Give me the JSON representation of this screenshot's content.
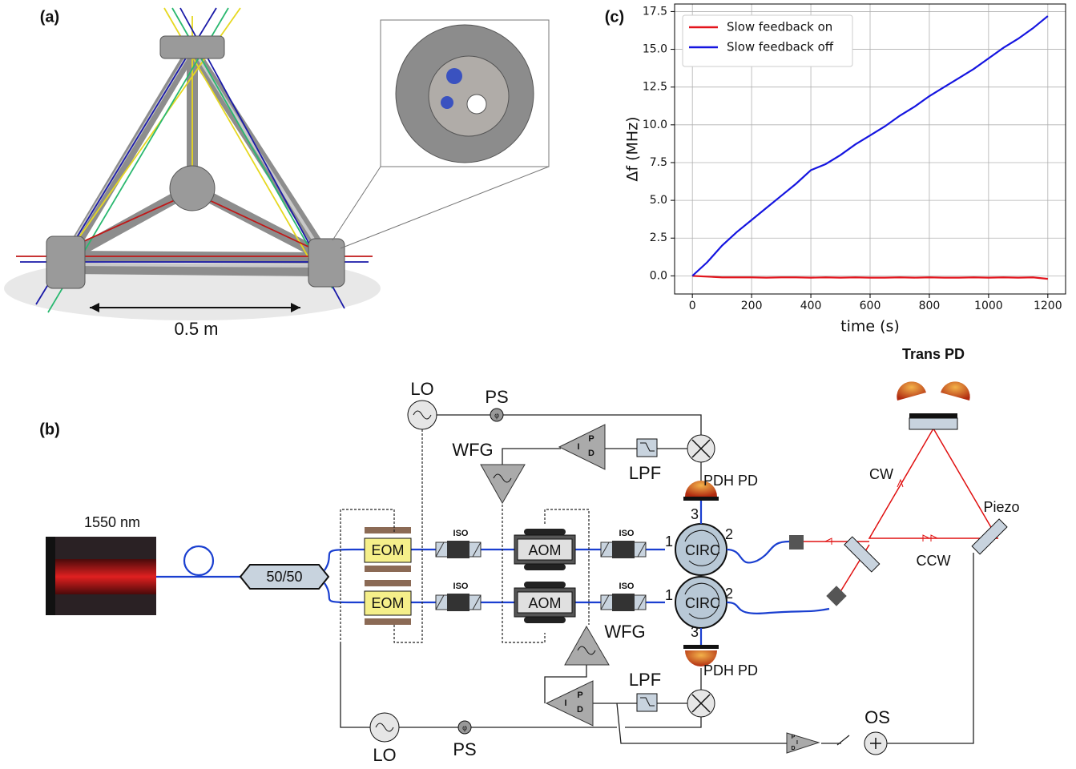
{
  "panels": {
    "a": "(a)",
    "b": "(b)",
    "c": "(c)"
  },
  "render": {
    "scale": "0.5 m"
  },
  "chart_data": {
    "type": "line",
    "x_label": "time (s)",
    "y_label": "Δf (MHz)",
    "x": [
      0,
      50,
      100,
      150,
      200,
      250,
      300,
      350,
      400,
      450,
      500,
      550,
      600,
      650,
      700,
      750,
      800,
      850,
      900,
      950,
      1000,
      1050,
      1100,
      1150,
      1200
    ],
    "series": [
      {
        "name": "Slow feedback on",
        "color": "#e3141c",
        "values": [
          0.0,
          -0.05,
          -0.1,
          -0.1,
          -0.1,
          -0.12,
          -0.1,
          -0.1,
          -0.12,
          -0.1,
          -0.12,
          -0.1,
          -0.12,
          -0.12,
          -0.1,
          -0.12,
          -0.1,
          -0.12,
          -0.12,
          -0.1,
          -0.12,
          -0.1,
          -0.12,
          -0.1,
          -0.2
        ]
      },
      {
        "name": "Slow feedback off",
        "color": "#1515e0",
        "values": [
          0.0,
          0.9,
          2.0,
          2.9,
          3.7,
          4.5,
          5.3,
          6.1,
          7.0,
          7.4,
          8.0,
          8.7,
          9.3,
          9.9,
          10.6,
          11.2,
          11.9,
          12.5,
          13.1,
          13.7,
          14.4,
          15.1,
          15.7,
          16.4,
          17.2
        ]
      }
    ],
    "xlim": [
      -60,
      1260
    ],
    "ylim": [
      -1.2,
      18.0
    ],
    "xticks": [
      0,
      200,
      400,
      600,
      800,
      1000,
      1200
    ],
    "yticks": [
      {
        "value": 0,
        "label": "0.0"
      },
      2.5,
      {
        "value": 5,
        "label": "5.0"
      },
      7.5,
      {
        "value": 10,
        "label": "10.0"
      },
      12.5,
      {
        "value": 15,
        "label": "15.0"
      },
      17.5
    ],
    "grid": true,
    "legend": "upper-left"
  },
  "diagram": {
    "laser": "1550 nm",
    "splitter": "50/50",
    "eom": [
      "EOM",
      "EOM"
    ],
    "isolators": [
      "ISO",
      "ISO",
      "ISO",
      "ISO"
    ],
    "aom": [
      "AOM",
      "AOM"
    ],
    "circulators": [
      "CIRC",
      "CIRC"
    ],
    "ports": [
      [
        "1",
        "2",
        "3"
      ],
      [
        "1",
        "2",
        "3"
      ]
    ],
    "lo": [
      "LO",
      "LO"
    ],
    "ps": [
      "PS",
      "PS"
    ],
    "phase": [
      "φ",
      "φ"
    ],
    "wfg": [
      "WFG",
      "WFG"
    ],
    "lpf": [
      "LPF",
      "LPF"
    ],
    "pdh_pd": [
      "PDH PD",
      "PDH PD"
    ],
    "pid": [
      [
        "I",
        "P",
        "D"
      ],
      [
        "I",
        "P",
        "D"
      ],
      [
        "P",
        "I",
        "D"
      ]
    ],
    "trans_pd": "Trans PD",
    "cw": "CW",
    "ccw": "CCW",
    "piezo": "Piezo",
    "os": "OS"
  }
}
